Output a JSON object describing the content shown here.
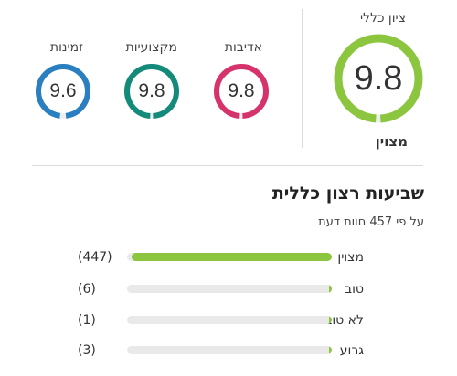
{
  "overall": {
    "label": "ציון כללי",
    "value": "9.8",
    "word": "מצוין",
    "level": 0.98,
    "color": "#8cc63f"
  },
  "metrics": [
    {
      "key": "courtesy",
      "label": "אדיבות",
      "value": "9.8",
      "level": 0.98,
      "color": "#d6336c"
    },
    {
      "key": "professionalism",
      "label": "מקצועיות",
      "value": "9.8",
      "level": 0.98,
      "color": "#138a7a"
    },
    {
      "key": "availability",
      "label": "זמינות",
      "value": "9.6",
      "level": 0.96,
      "color": "#2a7fc1"
    }
  ],
  "satisfaction": {
    "title": "שביעות רצון כללית",
    "subtitle": "על פי 457 חוות דעת",
    "rows": [
      {
        "label": "מצוין",
        "count": "(447)",
        "fraction": 0.978,
        "color": "#8cc63f"
      },
      {
        "label": "טוב",
        "count": "(6)",
        "fraction": 0.013,
        "color": "#8cc63f"
      },
      {
        "label": "לא טוב",
        "count": "(1)",
        "fraction": 0.002,
        "color": "#8cc63f"
      },
      {
        "label": "גרוע",
        "count": "(3)",
        "fraction": 0.007,
        "color": "#8cc63f"
      }
    ]
  }
}
